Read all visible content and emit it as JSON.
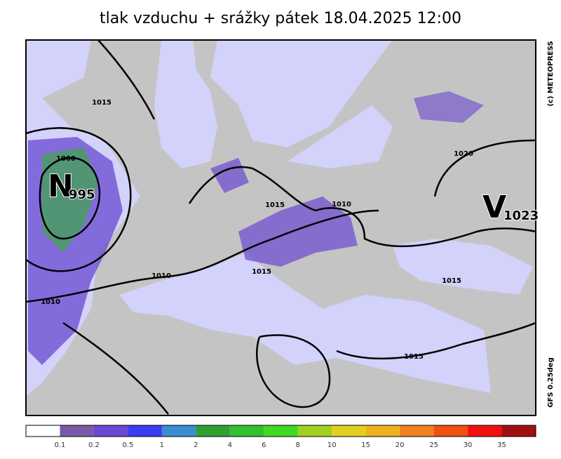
{
  "title": "tlak vzduchu + srážky   pátek 18.04.2025 12:00",
  "credit": "(c) METEOPRESS",
  "model": "GFS 0.25deg",
  "pressure_centers": [
    {
      "letter": "N",
      "value": "995"
    },
    {
      "letter": "V",
      "value": "1023"
    }
  ],
  "isobar_labels": [
    "1015",
    "1000",
    "1015",
    "1010",
    "1020",
    "1010",
    "1010",
    "1015",
    "1015",
    "1015"
  ],
  "legend": {
    "labels": [
      "0.1",
      "0.2",
      "0.5",
      "1",
      "2",
      "4",
      "6",
      "8",
      "10",
      "15",
      "20",
      "25",
      "30",
      "35"
    ],
    "colors": [
      "#ffffff",
      "#7a5aa8",
      "#6a48d0",
      "#3c3cf0",
      "#3c8cd0",
      "#30a030",
      "#30c030",
      "#40d820",
      "#a0d020",
      "#e0d020",
      "#f0b020",
      "#f08020",
      "#f05010",
      "#f01010",
      "#a01010"
    ]
  }
}
